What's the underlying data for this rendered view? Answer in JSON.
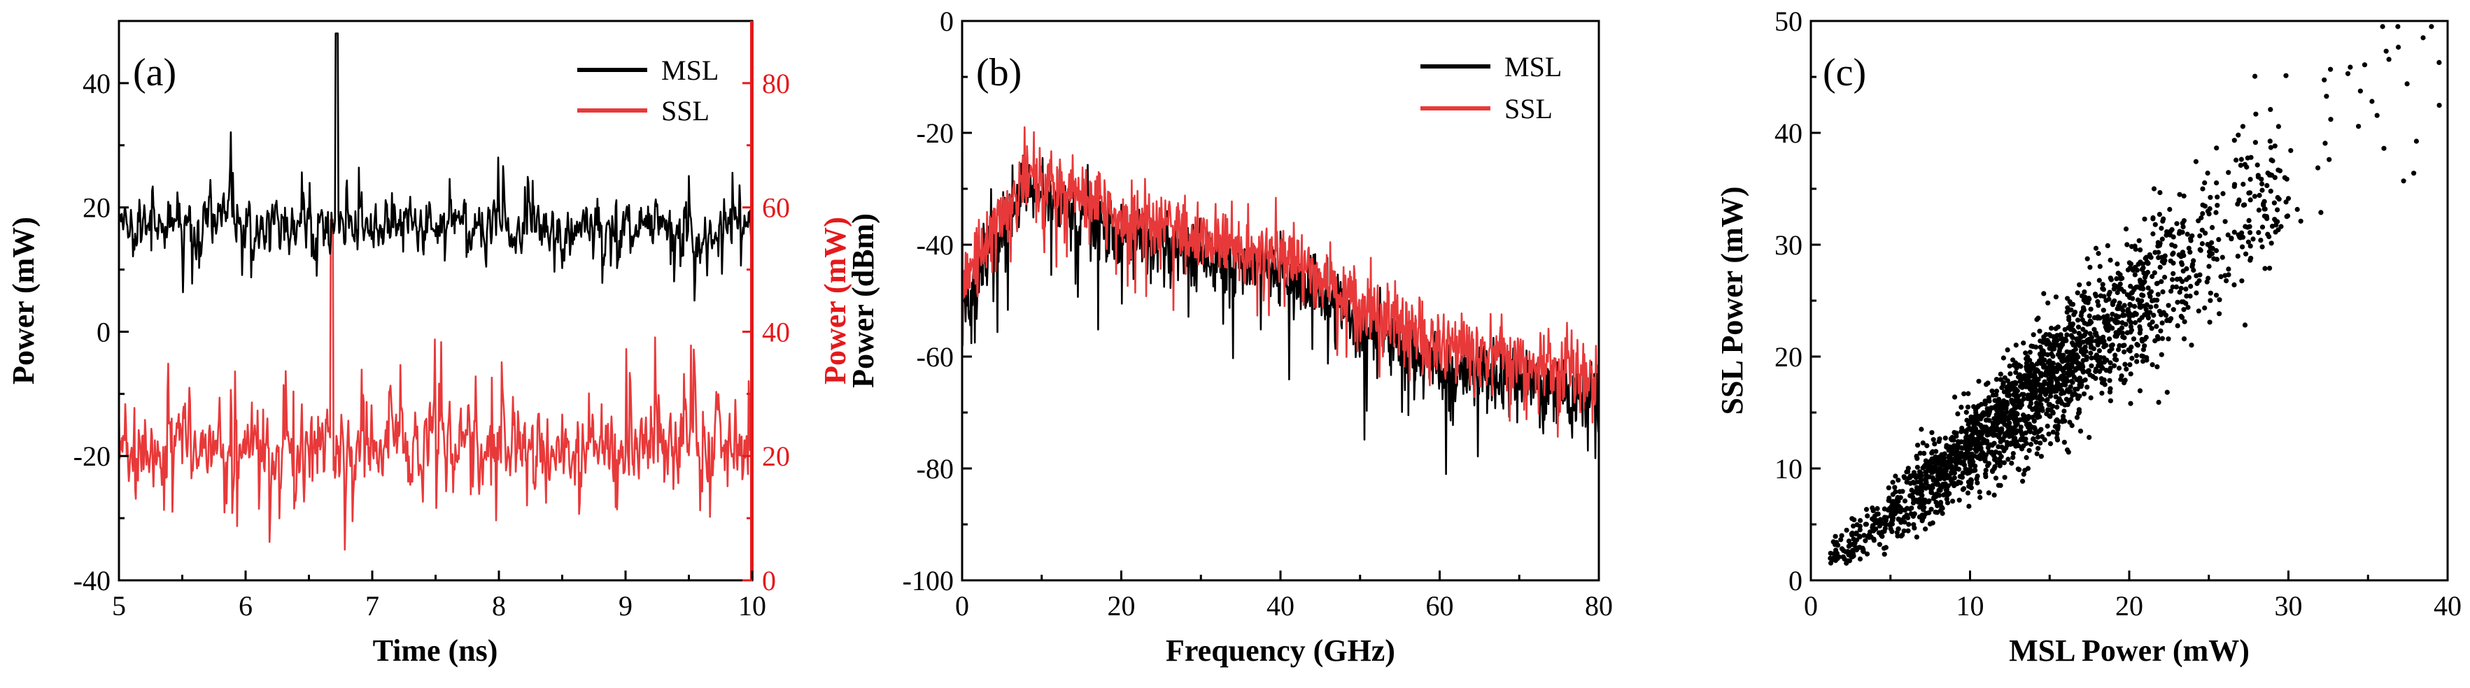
{
  "colors": {
    "msl": "#000000",
    "ssl": "#e8393a",
    "axis": "#000000",
    "red_axis": "#e41a1c"
  },
  "chart_data": [
    {
      "panel": "(a)",
      "type": "line",
      "xlabel": "Time (ns)",
      "ylabel": "Power (mW)",
      "ylabel_right": "Power (mW)",
      "xlim": [
        5,
        10
      ],
      "ylim": [
        -40,
        50
      ],
      "ylim_right": [
        0,
        90
      ],
      "x_ticks": [
        "5",
        "6",
        "7",
        "8",
        "9",
        "10"
      ],
      "y_ticks": [
        "-40",
        "-20",
        "0",
        "20",
        "40"
      ],
      "y_ticks_right": [
        "0",
        "20",
        "40",
        "60",
        "80"
      ],
      "legend": [
        "MSL",
        "SSL"
      ],
      "legend_position": "top-right",
      "series": [
        {
          "name": "MSL",
          "axis": "left",
          "mean": 17,
          "fluctuation": 6,
          "spike_at": 6.72,
          "spike_value": 48
        },
        {
          "name": "SSL",
          "axis": "right",
          "mean": 22,
          "fluctuation": 9,
          "spike_at": 6.68,
          "spike_value": 58,
          "min": 3
        }
      ]
    },
    {
      "panel": "(b)",
      "type": "line",
      "xlabel": "Frequency (GHz)",
      "ylabel": "Power (dBm)",
      "xlim": [
        0,
        80
      ],
      "ylim": [
        -100,
        0
      ],
      "x_ticks": [
        "0",
        "20",
        "40",
        "60",
        "80"
      ],
      "y_ticks": [
        "-100",
        "-80",
        "-60",
        "-40",
        "-20",
        "0"
      ],
      "legend": [
        "MSL",
        "SSL"
      ],
      "legend_position": "top-right",
      "series": [
        {
          "name": "MSL",
          "envelope": [
            [
              0,
              -50
            ],
            [
              8,
              -30
            ],
            [
              20,
              -38
            ],
            [
              40,
              -45
            ],
            [
              60,
              -62
            ],
            [
              80,
              -68
            ]
          ]
        },
        {
          "name": "SSL",
          "envelope": [
            [
              0,
              -48
            ],
            [
              8,
              -27
            ],
            [
              20,
              -35
            ],
            [
              40,
              -42
            ],
            [
              60,
              -58
            ],
            [
              80,
              -64
            ]
          ]
        }
      ]
    },
    {
      "panel": "(c)",
      "type": "scatter",
      "xlabel": "MSL Power (mW)",
      "ylabel": "SSL Power (mW)",
      "xlim": [
        0,
        40
      ],
      "ylim": [
        0,
        50
      ],
      "x_ticks": [
        "0",
        "10",
        "20",
        "30",
        "40"
      ],
      "y_ticks": [
        "0",
        "10",
        "20",
        "30",
        "40",
        "50"
      ],
      "series": [
        {
          "name": "points",
          "x_range": [
            1,
            40
          ],
          "relation": "y ≈ 1.2·x",
          "n_points": 2200
        }
      ]
    }
  ]
}
